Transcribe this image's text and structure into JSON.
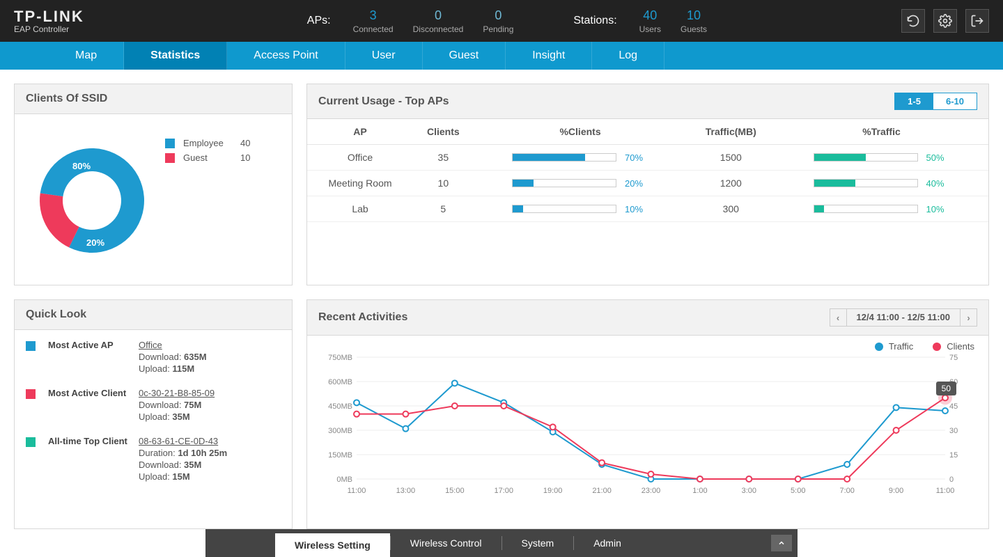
{
  "brand": {
    "name": "TP-LINK",
    "sub": "EAP Controller"
  },
  "header": {
    "aps_label": "APs:",
    "aps": [
      {
        "n": "3",
        "cap": "Connected"
      },
      {
        "n": "0",
        "cap": "Disconnected"
      },
      {
        "n": "0",
        "cap": "Pending"
      }
    ],
    "stations_label": "Stations:",
    "stations": [
      {
        "n": "40",
        "cap": "Users"
      },
      {
        "n": "10",
        "cap": "Guests"
      }
    ]
  },
  "nav": {
    "tabs": [
      "Map",
      "Statistics",
      "Access Point",
      "User",
      "Guest",
      "Insight",
      "Log"
    ],
    "active": 1
  },
  "ssid": {
    "title": "Clients Of SSID",
    "legend": [
      {
        "label": "Employee",
        "count": "40",
        "color": "#1e9acf"
      },
      {
        "label": "Guest",
        "count": "10",
        "color": "#ee3a5b"
      }
    ],
    "donut": {
      "emp_pct": 80,
      "guest_pct": 20,
      "emp_color": "#1e9acf",
      "guest_color": "#ee3a5b",
      "emp_txt": "80%",
      "guest_txt": "20%"
    }
  },
  "topaps": {
    "title": "Current Usage - Top APs",
    "range": {
      "on": "1-5",
      "off": "6-10"
    },
    "cols": [
      "AP",
      "Clients",
      "%Clients",
      "Traffic(MB)",
      "%Traffic"
    ],
    "rows": [
      {
        "ap": "Office",
        "clients": "35",
        "pc": 70,
        "traffic": "1500",
        "pt": 50
      },
      {
        "ap": "Meeting Room",
        "clients": "10",
        "pc": 20,
        "traffic": "1200",
        "pt": 40
      },
      {
        "ap": "Lab",
        "clients": "5",
        "pc": 10,
        "traffic": "300",
        "pt": 10
      }
    ],
    "client_bar_color": "#1e9acf",
    "traffic_bar_color": "#1abc9c"
  },
  "quicklook": {
    "title": "Quick Look",
    "items": [
      {
        "color": "#1e9acf",
        "label": "Most Active AP",
        "link": "Office",
        "lines": [
          "Download: 635M",
          "Upload: 115M"
        ]
      },
      {
        "color": "#ee3a5b",
        "label": "Most Active Client",
        "link": "0c-30-21-B8-85-09",
        "lines": [
          "Download: 75M",
          "Upload: 35M"
        ]
      },
      {
        "color": "#1abc9c",
        "label": "All-time Top Client",
        "link": "08-63-61-CE-0D-43",
        "lines": [
          "Duration: 1d 10h 25m",
          "Download: 35M",
          "Upload: 15M"
        ]
      }
    ]
  },
  "recent": {
    "title": "Recent Activities",
    "range": "12/4 11:00 - 12/5 11:00",
    "legend": {
      "traffic": "Traffic",
      "clients": "Clients",
      "traffic_c": "#1e9acf",
      "clients_c": "#ee3a5b"
    },
    "tooltip": "50",
    "chart": {
      "y1": {
        "labels": [
          "750MB",
          "600MB",
          "450MB",
          "300MB",
          "150MB",
          "0MB"
        ],
        "max": 750
      },
      "y2": {
        "labels": [
          "75",
          "60",
          "45",
          "30",
          "15",
          "0"
        ],
        "max": 75
      },
      "x": [
        "11:00",
        "13:00",
        "15:00",
        "17:00",
        "19:00",
        "21:00",
        "23:00",
        "1:00",
        "3:00",
        "5:00",
        "7:00",
        "9:00",
        "11:00"
      ],
      "traffic": [
        470,
        310,
        590,
        470,
        290,
        90,
        0,
        0,
        0,
        0,
        90,
        440,
        420
      ],
      "clients": [
        40,
        40,
        45,
        45,
        32,
        10,
        3,
        0,
        0,
        0,
        0,
        30,
        50
      ]
    }
  },
  "bottom": {
    "tabs": [
      "Wireless Setting",
      "Wireless Control",
      "System",
      "Admin"
    ],
    "active": 0
  }
}
